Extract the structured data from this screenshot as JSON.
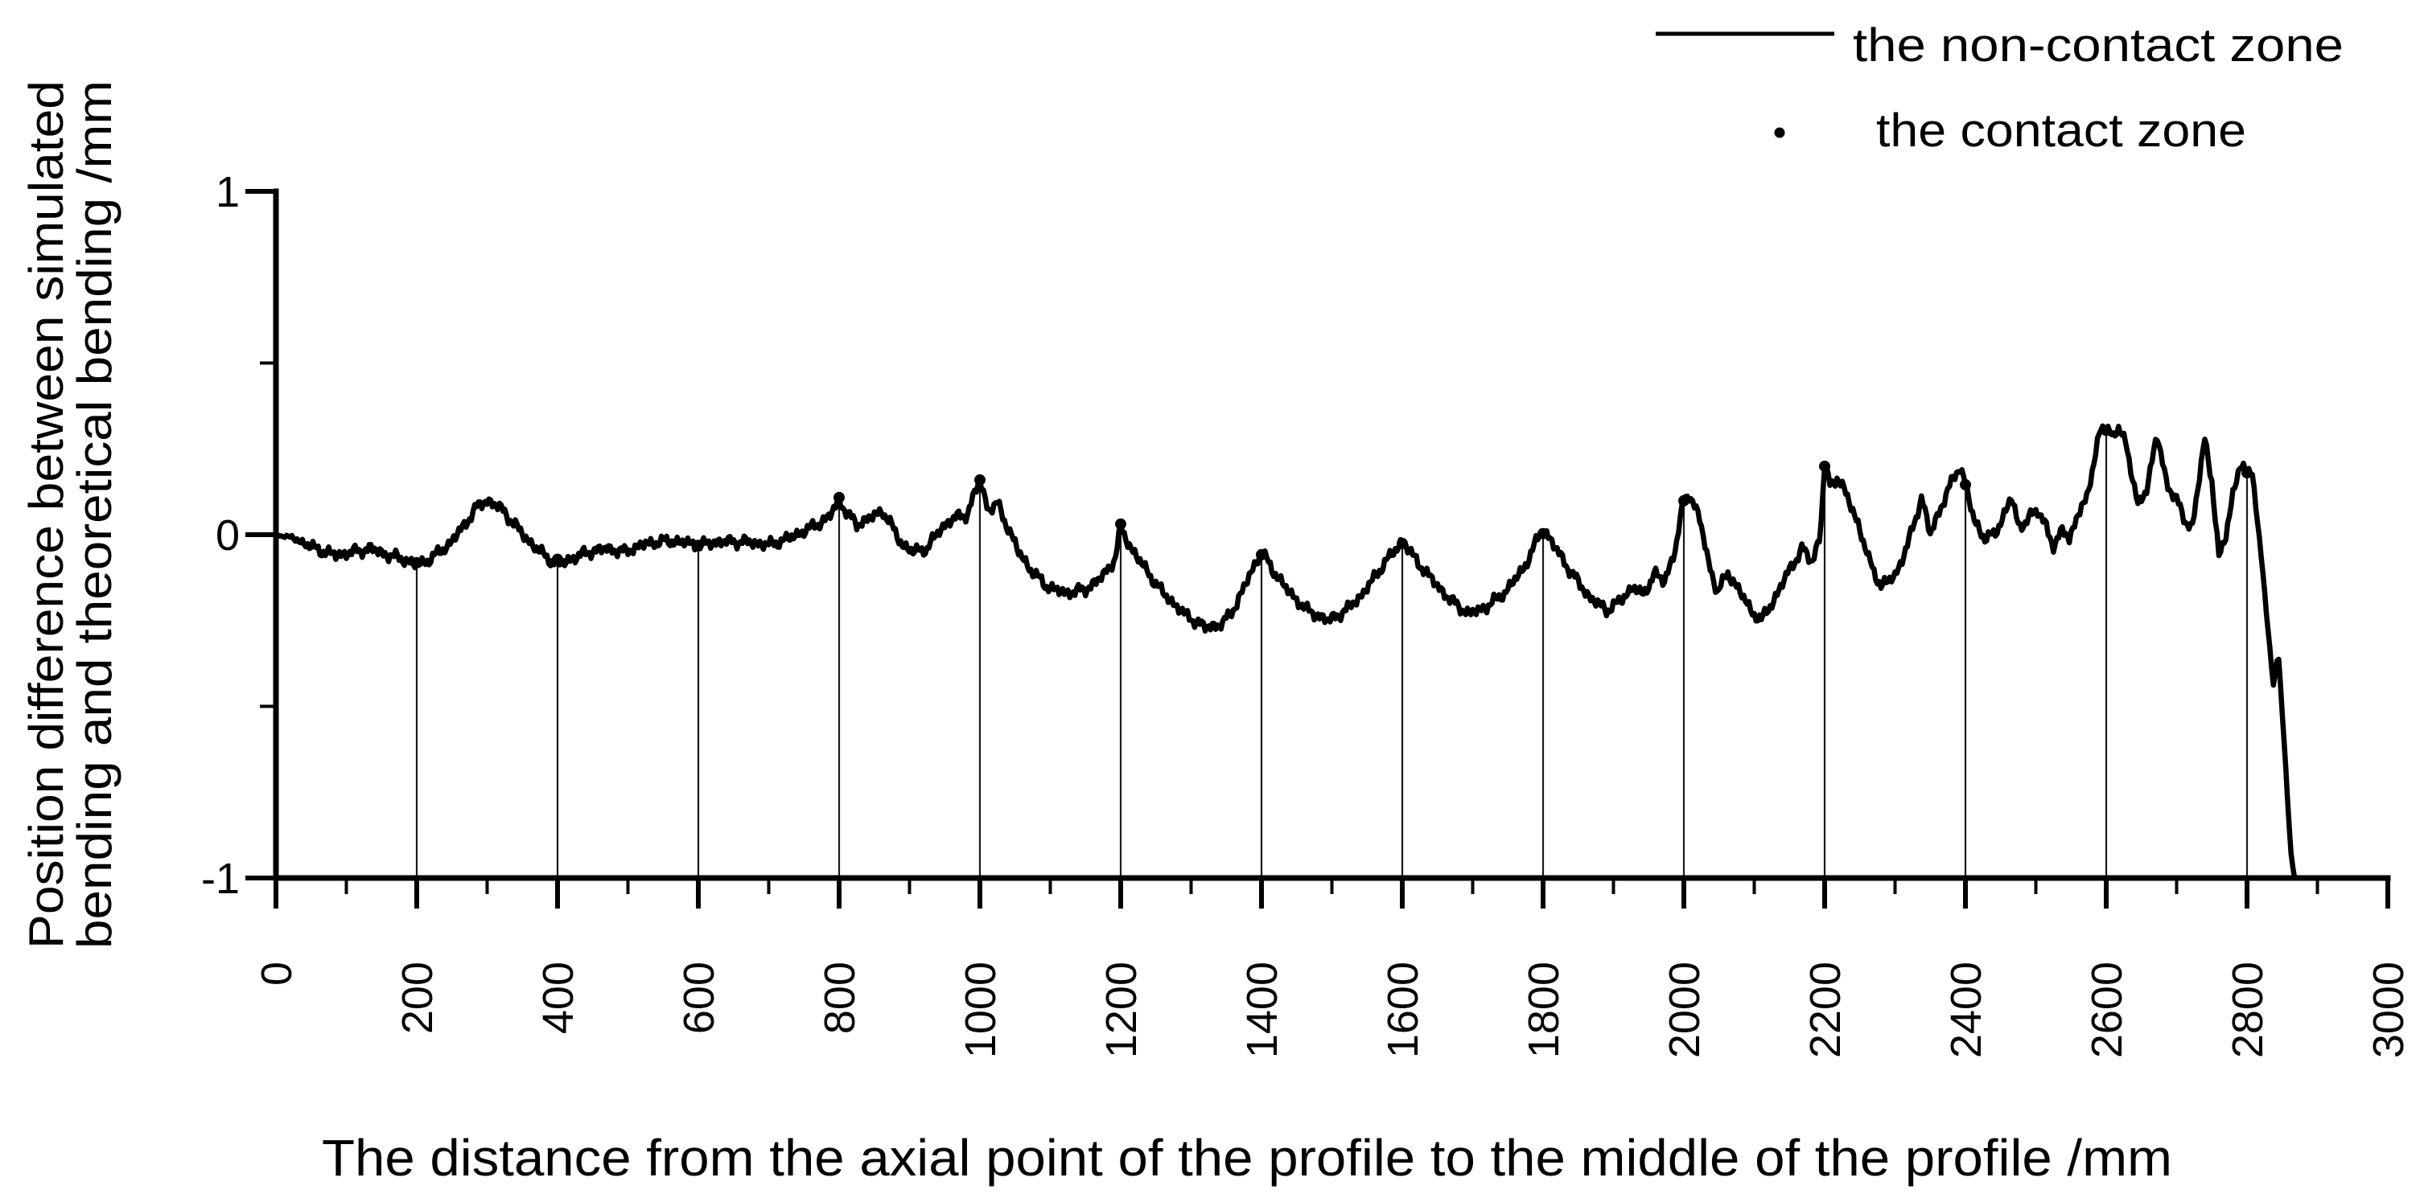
{
  "figure": {
    "background": "#ffffff",
    "ink": "#000000",
    "drop_line_color": "#1a1a1a"
  },
  "legend": {
    "items": [
      {
        "symbol": "line-icon",
        "label": "the non-contact zone"
      },
      {
        "symbol": "dot-icon",
        "label": "the contact zone"
      }
    ]
  },
  "chart_data": {
    "type": "line",
    "title": "",
    "xlabel": "The distance from the axial point of the profile to the middle of the profile /mm",
    "ylabel_lines": [
      "Position difference between simulated",
      "bending and theoretical bending /mm"
    ],
    "xlim": [
      0,
      3000
    ],
    "ylim": [
      -1,
      1
    ],
    "xticks": [
      0,
      200,
      400,
      600,
      800,
      1000,
      1200,
      1400,
      1600,
      1800,
      2000,
      2200,
      2400,
      2600,
      2800,
      3000
    ],
    "xtick_minor": [
      100,
      300,
      500,
      700,
      900,
      1100,
      1300,
      1500,
      1700,
      1900,
      2100,
      2300,
      2500,
      2700,
      2900
    ],
    "yticks": [
      1,
      0,
      -1
    ],
    "ytick_minor": [
      0.5,
      -0.5
    ],
    "grid": false,
    "legend_position": "top-right",
    "series": [
      {
        "name": "the non-contact zone",
        "style": "line",
        "anchors": [
          [
            0,
            0.0
          ],
          [
            25,
            -0.01
          ],
          [
            55,
            -0.04
          ],
          [
            85,
            -0.06
          ],
          [
            110,
            -0.05
          ],
          [
            135,
            -0.04
          ],
          [
            160,
            -0.06
          ],
          [
            180,
            -0.07
          ],
          [
            200,
            -0.09
          ],
          [
            220,
            -0.07
          ],
          [
            245,
            -0.03
          ],
          [
            265,
            0.02
          ],
          [
            285,
            0.08
          ],
          [
            300,
            0.1
          ],
          [
            318,
            0.08
          ],
          [
            335,
            0.04
          ],
          [
            355,
            -0.01
          ],
          [
            375,
            -0.05
          ],
          [
            400,
            -0.09
          ],
          [
            420,
            -0.07
          ],
          [
            445,
            -0.05
          ],
          [
            470,
            -0.04
          ],
          [
            495,
            -0.05
          ],
          [
            520,
            -0.03
          ],
          [
            545,
            -0.02
          ],
          [
            570,
            -0.02
          ],
          [
            600,
            -0.03
          ],
          [
            630,
            -0.02
          ],
          [
            665,
            -0.02
          ],
          [
            700,
            -0.03
          ],
          [
            730,
            -0.01
          ],
          [
            760,
            0.02
          ],
          [
            785,
            0.05
          ],
          [
            800,
            0.1
          ],
          [
            812,
            0.06
          ],
          [
            825,
            0.03
          ],
          [
            845,
            0.05
          ],
          [
            862,
            0.07
          ],
          [
            876,
            0.02
          ],
          [
            890,
            -0.03
          ],
          [
            905,
            -0.05
          ],
          [
            925,
            -0.04
          ],
          [
            945,
            0.02
          ],
          [
            965,
            0.05
          ],
          [
            982,
            0.06
          ],
          [
            1000,
            0.16
          ],
          [
            1012,
            0.07
          ],
          [
            1025,
            0.09
          ],
          [
            1040,
            0.02
          ],
          [
            1055,
            -0.05
          ],
          [
            1075,
            -0.11
          ],
          [
            1095,
            -0.15
          ],
          [
            1120,
            -0.17
          ],
          [
            1150,
            -0.16
          ],
          [
            1175,
            -0.12
          ],
          [
            1192,
            -0.07
          ],
          [
            1200,
            0.02
          ],
          [
            1212,
            -0.03
          ],
          [
            1235,
            -0.1
          ],
          [
            1260,
            -0.17
          ],
          [
            1290,
            -0.23
          ],
          [
            1320,
            -0.27
          ],
          [
            1345,
            -0.26
          ],
          [
            1365,
            -0.2
          ],
          [
            1385,
            -0.11
          ],
          [
            1400,
            -0.05
          ],
          [
            1415,
            -0.1
          ],
          [
            1440,
            -0.17
          ],
          [
            1465,
            -0.22
          ],
          [
            1495,
            -0.25
          ],
          [
            1520,
            -0.22
          ],
          [
            1545,
            -0.17
          ],
          [
            1572,
            -0.09
          ],
          [
            1600,
            -0.02
          ],
          [
            1618,
            -0.07
          ],
          [
            1642,
            -0.13
          ],
          [
            1668,
            -0.19
          ],
          [
            1695,
            -0.23
          ],
          [
            1720,
            -0.21
          ],
          [
            1745,
            -0.17
          ],
          [
            1772,
            -0.1
          ],
          [
            1800,
            0.02
          ],
          [
            1818,
            -0.04
          ],
          [
            1840,
            -0.11
          ],
          [
            1865,
            -0.18
          ],
          [
            1890,
            -0.22
          ],
          [
            1912,
            -0.19
          ],
          [
            1928,
            -0.15
          ],
          [
            1942,
            -0.18
          ],
          [
            1958,
            -0.11
          ],
          [
            1972,
            -0.14
          ],
          [
            1988,
            -0.04
          ],
          [
            2000,
            0.1
          ],
          [
            2008,
            0.12
          ],
          [
            2022,
            0.05
          ],
          [
            2035,
            -0.08
          ],
          [
            2048,
            -0.17
          ],
          [
            2062,
            -0.11
          ],
          [
            2078,
            -0.16
          ],
          [
            2095,
            -0.22
          ],
          [
            2110,
            -0.25
          ],
          [
            2128,
            -0.19
          ],
          [
            2148,
            -0.11
          ],
          [
            2168,
            -0.04
          ],
          [
            2182,
            -0.08
          ],
          [
            2194,
            0.0
          ],
          [
            2200,
            0.21
          ],
          [
            2208,
            0.14
          ],
          [
            2218,
            0.17
          ],
          [
            2232,
            0.11
          ],
          [
            2248,
            0.03
          ],
          [
            2262,
            -0.07
          ],
          [
            2280,
            -0.15
          ],
          [
            2300,
            -0.12
          ],
          [
            2318,
            -0.03
          ],
          [
            2338,
            0.11
          ],
          [
            2350,
            0.0
          ],
          [
            2365,
            0.08
          ],
          [
            2382,
            0.16
          ],
          [
            2392,
            0.2
          ],
          [
            2400,
            0.15
          ],
          [
            2412,
            0.04
          ],
          [
            2428,
            -0.01
          ],
          [
            2442,
            0.0
          ],
          [
            2455,
            0.06
          ],
          [
            2465,
            0.11
          ],
          [
            2476,
            0.02
          ],
          [
            2490,
            0.05
          ],
          [
            2502,
            0.07
          ],
          [
            2515,
            0.03
          ],
          [
            2526,
            -0.05
          ],
          [
            2538,
            0.03
          ],
          [
            2548,
            -0.02
          ],
          [
            2560,
            0.06
          ],
          [
            2572,
            0.11
          ],
          [
            2582,
            0.2
          ],
          [
            2592,
            0.31
          ],
          [
            2600,
            0.32
          ],
          [
            2610,
            0.28
          ],
          [
            2618,
            0.31
          ],
          [
            2628,
            0.27
          ],
          [
            2645,
            0.08
          ],
          [
            2658,
            0.14
          ],
          [
            2672,
            0.29
          ],
          [
            2686,
            0.15
          ],
          [
            2700,
            0.1
          ],
          [
            2712,
            0.04
          ],
          [
            2722,
            0.02
          ],
          [
            2732,
            0.16
          ],
          [
            2740,
            0.28
          ],
          [
            2750,
            0.16
          ],
          [
            2760,
            -0.07
          ],
          [
            2770,
            0.0
          ],
          [
            2780,
            0.12
          ],
          [
            2790,
            0.2
          ],
          [
            2800,
            0.18
          ],
          [
            2807,
            0.2
          ],
          [
            2814,
            0.05
          ],
          [
            2822,
            -0.1
          ],
          [
            2830,
            -0.28
          ],
          [
            2838,
            -0.45
          ],
          [
            2844,
            -0.33
          ],
          [
            2850,
            -0.52
          ],
          [
            2857,
            -0.75
          ],
          [
            2862,
            -0.92
          ],
          [
            2867,
            -1.0
          ],
          [
            2875,
            -1.0
          ]
        ]
      },
      {
        "name": "the contact zone",
        "style": "points",
        "points": [
          [
            200,
            -0.09
          ],
          [
            400,
            -0.09
          ],
          [
            600,
            -0.03
          ],
          [
            800,
            0.1
          ],
          [
            1000,
            0.16
          ],
          [
            1200,
            0.02
          ],
          [
            1400,
            -0.05
          ],
          [
            1600,
            -0.02
          ],
          [
            1800,
            0.02
          ],
          [
            2000,
            0.1
          ],
          [
            2200,
            0.21
          ],
          [
            2400,
            0.15
          ],
          [
            2600,
            0.32
          ],
          [
            2800,
            0.18
          ]
        ]
      }
    ],
    "drop_lines_x": [
      200,
      400,
      600,
      800,
      1000,
      1200,
      1400,
      1600,
      1800,
      2000,
      2200,
      2400,
      2600,
      2800
    ],
    "x_end_of_curve": 2875
  }
}
